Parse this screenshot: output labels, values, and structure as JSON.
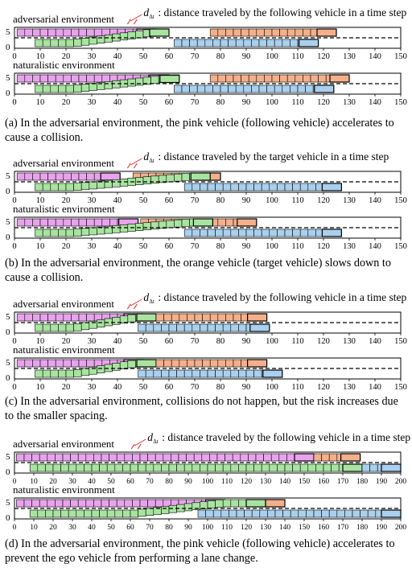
{
  "colors": {
    "pink": "#e9a3ee",
    "green": "#a8e4a0",
    "orange": "#f4b08a",
    "blue": "#a9d0ee",
    "stroke": "#000000"
  },
  "panels": [
    {
      "id": "a",
      "delta_label": "d",
      "delta_sub": "Δt",
      "delta_text": ": distance traveled by the following vehicle in a time step",
      "x_ticks": [
        "0",
        "10",
        "20",
        "30",
        "40",
        "50",
        "60",
        "70",
        "80",
        "90",
        "100",
        "110",
        "120",
        "130",
        "140",
        "150"
      ],
      "x_max": 150,
      "y_ticks": [
        "5",
        "0"
      ],
      "caption": "(a) In the adversarial environment, the pink vehicle (following vehicle) accelerates to cause a collision.",
      "plots": [
        {
          "label": "adversarial environment",
          "trajectories": [
            {
              "color": "pink",
              "lane": "top",
              "x0": 1,
              "x1": 55,
              "step": 3
            },
            {
              "color": "green",
              "lane": "mix",
              "x0": 8,
              "x1": 60,
              "from": "bottom",
              "to": "top",
              "change_start": 22,
              "change_end": 52,
              "step": 3
            },
            {
              "color": "orange",
              "lane": "top",
              "x0": 76,
              "x1": 125,
              "step": 3
            },
            {
              "color": "blue",
              "lane": "bottom",
              "x0": 62,
              "x1": 118,
              "step": 3
            }
          ]
        },
        {
          "label": "naturalistic environment",
          "trajectories": [
            {
              "color": "pink",
              "lane": "top",
              "x0": 1,
              "x1": 60,
              "step": 3
            },
            {
              "color": "green",
              "lane": "mix",
              "x0": 8,
              "x1": 64,
              "from": "bottom",
              "to": "top",
              "change_start": 22,
              "change_end": 58,
              "step": 3
            },
            {
              "color": "orange",
              "lane": "top",
              "x0": 76,
              "x1": 130,
              "step": 3
            },
            {
              "color": "blue",
              "lane": "bottom",
              "x0": 62,
              "x1": 124,
              "step": 3
            }
          ]
        }
      ]
    },
    {
      "id": "b",
      "delta_label": "d",
      "delta_sub": "Δt",
      "delta_text": ": distance traveled by the target vehicle in a time step",
      "x_ticks": [
        "0",
        "10",
        "20",
        "30",
        "40",
        "50",
        "60",
        "70",
        "80",
        "90",
        "100",
        "110",
        "120",
        "130",
        "140",
        "150"
      ],
      "x_max": 150,
      "y_ticks": [
        "5",
        "0"
      ],
      "caption": "(b) In the adversarial environment, the orange vehicle (target vehicle) slows down to cause a collision.",
      "plots": [
        {
          "label": "adversarial environment",
          "trajectories": [
            {
              "color": "pink",
              "lane": "top",
              "x0": 1,
              "x1": 41,
              "step": 3
            },
            {
              "color": "orange",
              "lane": "top",
              "x0": 46,
              "x1": 80,
              "step": 3
            },
            {
              "color": "green",
              "lane": "mix",
              "x0": 8,
              "x1": 76,
              "from": "bottom",
              "to": "top",
              "change_start": 22,
              "change_end": 66,
              "step": 3
            },
            {
              "color": "blue",
              "lane": "bottom",
              "x0": 66,
              "x1": 127,
              "step": 3
            }
          ]
        },
        {
          "label": "naturalistic environment",
          "trajectories": [
            {
              "color": "pink",
              "lane": "top",
              "x0": 1,
              "x1": 48,
              "step": 3
            },
            {
              "color": "orange",
              "lane": "top",
              "x0": 49,
              "x1": 94,
              "step": 3
            },
            {
              "color": "green",
              "lane": "mix",
              "x0": 8,
              "x1": 77,
              "from": "bottom",
              "to": "top",
              "change_start": 22,
              "change_end": 66,
              "step": 3
            },
            {
              "color": "blue",
              "lane": "bottom",
              "x0": 66,
              "x1": 127,
              "step": 3
            }
          ]
        }
      ]
    },
    {
      "id": "c",
      "delta_label": "d",
      "delta_sub": "Δt",
      "delta_text": ": distance traveled by the following vehicle in a time step",
      "x_ticks": [
        "0",
        "10",
        "20",
        "30",
        "40",
        "50",
        "60",
        "70",
        "80",
        "90",
        "100",
        "110",
        "120",
        "130",
        "140",
        "150"
      ],
      "x_max": 150,
      "y_ticks": [
        "5",
        "0"
      ],
      "caption": "(c) In the adversarial environment, collisions do not happen, but the risk increases due to the smaller spacing.",
      "plots": [
        {
          "label": "adversarial environment",
          "trajectories": [
            {
              "color": "pink",
              "lane": "top",
              "x0": 1,
              "x1": 50,
              "step": 3
            },
            {
              "color": "green",
              "lane": "mix",
              "x0": 8,
              "x1": 55,
              "from": "bottom",
              "to": "top",
              "change_start": 22,
              "change_end": 46,
              "step": 3
            },
            {
              "color": "orange",
              "lane": "top",
              "x0": 55,
              "x1": 98,
              "step": 3
            },
            {
              "color": "blue",
              "lane": "bottom",
              "x0": 48,
              "x1": 99,
              "step": 3
            }
          ]
        },
        {
          "label": "naturalistic environment",
          "trajectories": [
            {
              "color": "pink",
              "lane": "top",
              "x0": 1,
              "x1": 50,
              "step": 3
            },
            {
              "color": "green",
              "lane": "mix",
              "x0": 8,
              "x1": 55,
              "from": "bottom",
              "to": "top",
              "change_start": 22,
              "change_end": 46,
              "step": 3
            },
            {
              "color": "orange",
              "lane": "top",
              "x0": 55,
              "x1": 98,
              "step": 3
            },
            {
              "color": "blue",
              "lane": "bottom",
              "x0": 48,
              "x1": 104,
              "step": 3
            }
          ]
        }
      ]
    },
    {
      "id": "d",
      "delta_label": "d",
      "delta_sub": "Δt",
      "delta_text": ": distance traveled by the following vehicle in a time step",
      "x_ticks": [
        "0",
        "10",
        "20",
        "30",
        "40",
        "50",
        "60",
        "70",
        "80",
        "90",
        "100",
        "110",
        "120",
        "130",
        "140",
        "150",
        "160",
        "170",
        "180",
        "190",
        "200"
      ],
      "x_max": 200,
      "y_ticks": [
        "5",
        "0"
      ],
      "caption": "(d) In the adversarial environment, the pink vehicle (following vehicle) accelerates to prevent the ego vehicle from performing a lane change.",
      "plots": [
        {
          "label": "adversarial environment",
          "trajectories": [
            {
              "color": "pink",
              "lane": "top",
              "x0": 1,
              "x1": 155,
              "step": 4
            },
            {
              "color": "orange",
              "lane": "top",
              "x0": 155,
              "x1": 179,
              "step": 4
            },
            {
              "color": "green",
              "lane": "bottom",
              "x0": 8,
              "x1": 180,
              "step": 4
            },
            {
              "color": "blue",
              "lane": "bottom",
              "x0": 180,
              "x1": 200,
              "step": 4
            }
          ]
        },
        {
          "label": "naturalistic environment",
          "trajectories": [
            {
              "color": "pink",
              "lane": "top",
              "x0": 1,
              "x1": 109,
              "step": 4
            },
            {
              "color": "orange",
              "lane": "top",
              "x0": 130,
              "x1": 140,
              "step": 4
            },
            {
              "color": "green",
              "lane": "mix",
              "x0": 8,
              "x1": 130,
              "from": "bottom",
              "to": "top",
              "change_start": 60,
              "change_end": 105,
              "step": 4
            },
            {
              "color": "blue",
              "lane": "bottom",
              "x0": 95,
              "x1": 200,
              "step": 4
            }
          ]
        }
      ]
    }
  ]
}
